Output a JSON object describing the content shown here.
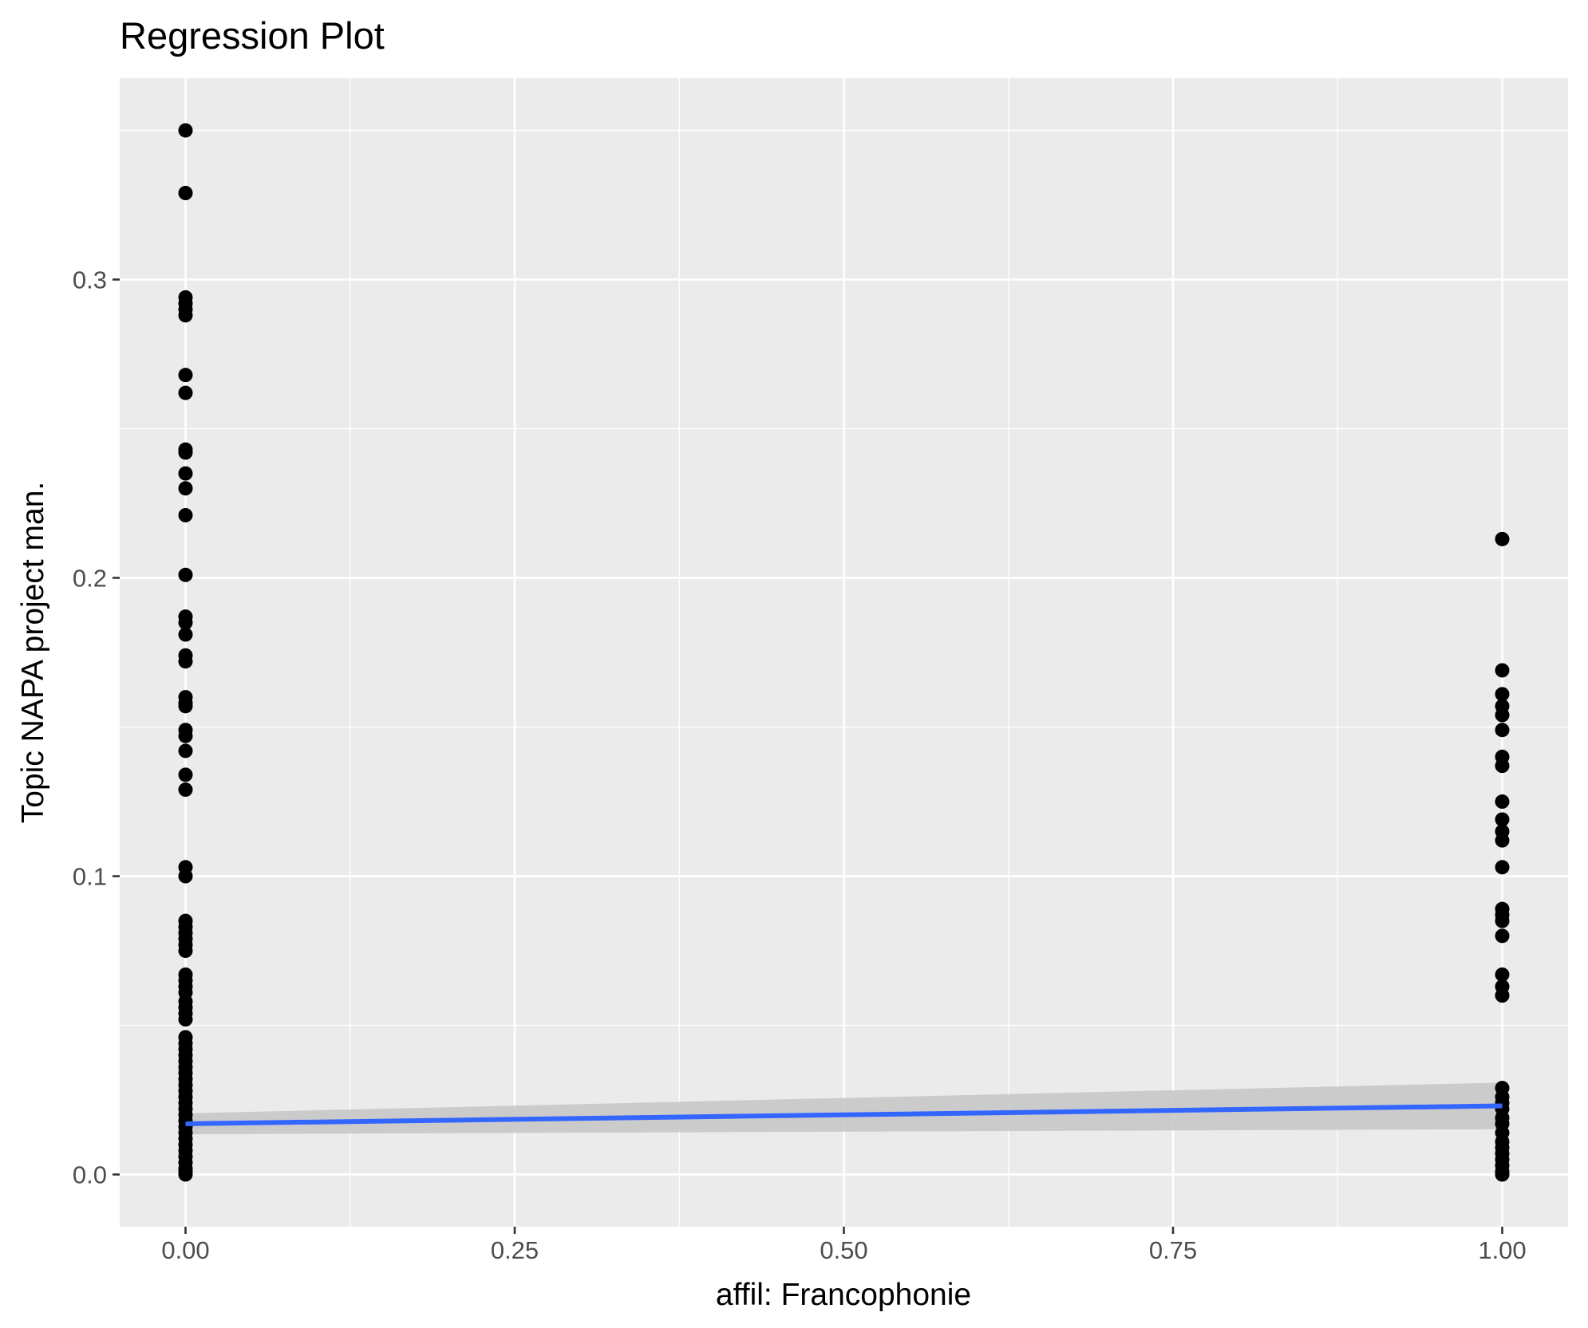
{
  "chart_data": {
    "type": "scatter",
    "title": "Regression Plot",
    "xlabel": "affil: Francophonie",
    "ylabel": "Topic NAPA project man.",
    "xlim": [
      -0.05,
      1.05
    ],
    "ylim": [
      -0.0175,
      0.3675
    ],
    "x_ticks": [
      0.0,
      0.25,
      0.5,
      0.75,
      1.0
    ],
    "x_tick_labels": [
      "0.00",
      "0.25",
      "0.50",
      "0.75",
      "1.00"
    ],
    "y_ticks": [
      0.0,
      0.1,
      0.2,
      0.3
    ],
    "y_tick_labels": [
      "0.0",
      "0.1",
      "0.2",
      "0.3"
    ],
    "grid": true,
    "background": "#ebebeb",
    "grid_color": "#ffffff",
    "point_color": "#000000",
    "series": [
      {
        "x_value": 0,
        "y": [
          0.35,
          0.329,
          0.294,
          0.292,
          0.29,
          0.288,
          0.268,
          0.262,
          0.243,
          0.242,
          0.235,
          0.23,
          0.221,
          0.201,
          0.187,
          0.185,
          0.181,
          0.174,
          0.172,
          0.16,
          0.158,
          0.157,
          0.149,
          0.147,
          0.142,
          0.134,
          0.129,
          0.103,
          0.1,
          0.085,
          0.083,
          0.081,
          0.079,
          0.077,
          0.075,
          0.067,
          0.065,
          0.063,
          0.061,
          0.058,
          0.056,
          0.054,
          0.052,
          0.046,
          0.044,
          0.042,
          0.04,
          0.038,
          0.036,
          0.034,
          0.032,
          0.03,
          0.028,
          0.026,
          0.024,
          0.022,
          0.02,
          0.018,
          0.016,
          0.014,
          0.012,
          0.01,
          0.008,
          0.006,
          0.004,
          0.002,
          0.001,
          0.0
        ]
      },
      {
        "x_value": 1,
        "y": [
          0.213,
          0.169,
          0.161,
          0.157,
          0.154,
          0.149,
          0.14,
          0.137,
          0.125,
          0.119,
          0.115,
          0.112,
          0.103,
          0.089,
          0.087,
          0.085,
          0.08,
          0.067,
          0.063,
          0.06,
          0.029,
          0.026,
          0.024,
          0.022,
          0.019,
          0.017,
          0.014,
          0.011,
          0.009,
          0.007,
          0.005,
          0.003,
          0.001,
          0.0
        ]
      }
    ],
    "regression": {
      "color": "#3366ff",
      "band_color": "#c8c8c8",
      "x": [
        0,
        1
      ],
      "y": [
        0.017,
        0.023
      ],
      "ci_lower": [
        0.0135,
        0.0152
      ],
      "ci_upper": [
        0.0205,
        0.0308
      ]
    }
  }
}
